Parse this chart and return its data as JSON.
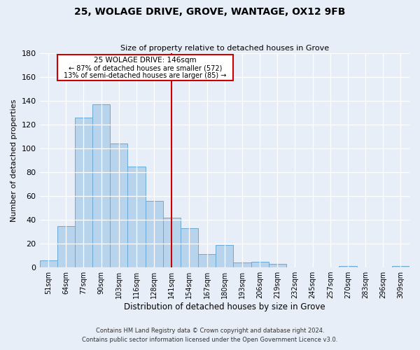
{
  "title": "25, WOLAGE DRIVE, GROVE, WANTAGE, OX12 9FB",
  "subtitle": "Size of property relative to detached houses in Grove",
  "xlabel": "Distribution of detached houses by size in Grove",
  "ylabel": "Number of detached properties",
  "bar_labels": [
    "51sqm",
    "64sqm",
    "77sqm",
    "90sqm",
    "103sqm",
    "116sqm",
    "128sqm",
    "141sqm",
    "154sqm",
    "167sqm",
    "180sqm",
    "193sqm",
    "206sqm",
    "219sqm",
    "232sqm",
    "245sqm",
    "257sqm",
    "270sqm",
    "283sqm",
    "296sqm",
    "309sqm"
  ],
  "bar_values": [
    6,
    35,
    126,
    137,
    104,
    85,
    56,
    42,
    33,
    11,
    19,
    4,
    5,
    3,
    0,
    0,
    0,
    1,
    0,
    0,
    1
  ],
  "bar_color": "#b8d4ec",
  "bar_edge_color": "#6aaad4",
  "vline_index": 7,
  "vline_color": "#cc0000",
  "annotation_title": "25 WOLAGE DRIVE: 146sqm",
  "annotation_line1": "← 87% of detached houses are smaller (572)",
  "annotation_line2": "13% of semi-detached houses are larger (85) →",
  "annotation_box_color": "#ffffff",
  "annotation_box_edge": "#cc0000",
  "ylim": [
    0,
    180
  ],
  "yticks": [
    0,
    20,
    40,
    60,
    80,
    100,
    120,
    140,
    160,
    180
  ],
  "footer1": "Contains HM Land Registry data © Crown copyright and database right 2024.",
  "footer2": "Contains public sector information licensed under the Open Government Licence v3.0.",
  "background_color": "#e8eef8"
}
